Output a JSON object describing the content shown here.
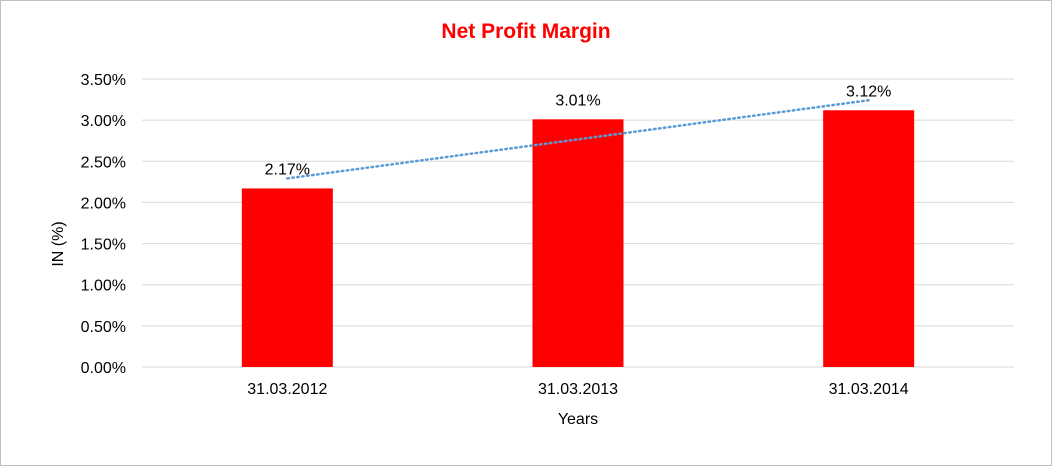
{
  "chart_data": {
    "type": "bar",
    "title": "Net Profit Margin",
    "xlabel": "Years",
    "ylabel": "IN (%)",
    "categories": [
      "31.03.2012",
      "31.03.2013",
      "31.03.2014"
    ],
    "values": [
      2.17,
      3.01,
      3.12
    ],
    "data_labels": [
      "2.17%",
      "3.01%",
      "3.12%"
    ],
    "ylim": [
      0,
      3.5
    ],
    "yticks": [
      0,
      0.5,
      1.0,
      1.5,
      2.0,
      2.5,
      3.0,
      3.5
    ],
    "ytick_labels": [
      "0.00%",
      "0.50%",
      "1.00%",
      "1.50%",
      "2.00%",
      "2.50%",
      "3.00%",
      "3.50%"
    ],
    "grid": true,
    "legend": "none",
    "trendline": "linear",
    "colors": {
      "bar": "#ff0000",
      "title": "#ff0000",
      "trendline": "#5b9bd5",
      "grid": "#d9d9d9"
    }
  }
}
